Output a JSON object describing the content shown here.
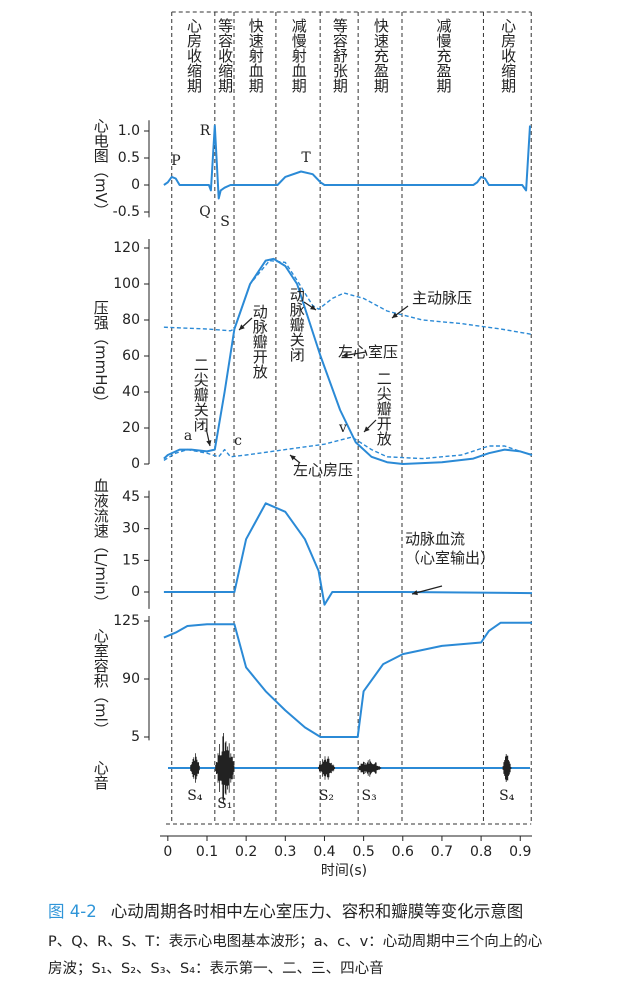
{
  "time_axis": {
    "label": "时间(s)",
    "xlim": [
      -0.02,
      0.93
    ],
    "xticks": [
      0,
      0.1,
      0.2,
      0.3,
      0.4,
      0.5,
      0.6,
      0.7,
      0.8,
      0.9
    ],
    "phases": {
      "labels": [
        "心房收缩期",
        "等容收缩期",
        "快速射血期",
        "减慢射血期",
        "等容舒张期",
        "快速充盈期",
        "减慢充盈期",
        "心房收缩期"
      ],
      "bounds": [
        0.01,
        0.12,
        0.169,
        0.276,
        0.389,
        0.486,
        0.598,
        0.806,
        0.928
      ]
    }
  },
  "chart_data": [
    {
      "type": "line",
      "y_label": "心电图（mV）",
      "ylim": [
        -0.6,
        1.2
      ],
      "yticks": [
        -0.5,
        0,
        0.5,
        {
          "value": 1,
          "label": "1.0"
        }
      ],
      "series": [
        {
          "color": "#2b8ad6",
          "dash": false,
          "x": [
            -0.01,
            0.0,
            0.01,
            0.02,
            0.03,
            0.105,
            0.11,
            0.12,
            0.13,
            0.135,
            0.145,
            0.16,
            0.28,
            0.3,
            0.34,
            0.37,
            0.39,
            0.4,
            0.78,
            0.79,
            0.8,
            0.81,
            0.82,
            0.905,
            0.915,
            0.925
          ],
          "values": [
            0,
            0.05,
            0.15,
            0.12,
            0,
            0,
            -0.1,
            1.1,
            -0.25,
            -0.1,
            -0.05,
            0,
            0,
            0.15,
            0.25,
            0.2,
            0.05,
            0,
            0,
            0.05,
            0.15,
            0.12,
            0,
            0,
            -0.1,
            1.1
          ]
        }
      ],
      "annotations": [
        "P",
        "Q",
        "R",
        "S",
        "T"
      ]
    },
    {
      "type": "line",
      "y_label": "压强（mmHg）",
      "ylim": [
        0,
        125
      ],
      "yticks": [
        0,
        20,
        40,
        60,
        80,
        100,
        120
      ],
      "series": [
        {
          "name": "左心室压",
          "color": "#2b8ad6",
          "dash": false,
          "x": [
            -0.01,
            0,
            0.03,
            0.06,
            0.1,
            0.12,
            0.145,
            0.17,
            0.21,
            0.25,
            0.27,
            0.3,
            0.33,
            0.36,
            0.39,
            0.44,
            0.48,
            0.52,
            0.56,
            0.6,
            0.7,
            0.78,
            0.82,
            0.86,
            0.9,
            0.93
          ],
          "values": [
            3,
            5,
            8,
            8,
            7,
            8,
            40,
            75,
            100,
            113,
            114,
            110,
            100,
            80,
            60,
            30,
            12,
            4,
            1,
            0,
            1,
            3,
            6,
            8,
            7,
            5
          ]
        },
        {
          "name": "主动脉压",
          "color": "#2b8ad6",
          "dash": true,
          "x": [
            -0.01,
            0.1,
            0.16,
            0.17,
            0.21,
            0.26,
            0.3,
            0.33,
            0.37,
            0.385,
            0.42,
            0.45,
            0.5,
            0.56,
            0.65,
            0.75,
            0.85,
            0.93
          ],
          "values": [
            76,
            75,
            74,
            75,
            100,
            113,
            112,
            102,
            88,
            86,
            92,
            95,
            92,
            85,
            80,
            78,
            75,
            72
          ]
        },
        {
          "name": "左心房压",
          "color": "#2b8ad6",
          "dash": true,
          "x": [
            -0.01,
            0.02,
            0.05,
            0.1,
            0.13,
            0.145,
            0.16,
            0.2,
            0.3,
            0.4,
            0.47,
            0.52,
            0.56,
            0.65,
            0.75,
            0.82,
            0.86,
            0.9,
            0.93
          ],
          "values": [
            2,
            6,
            8,
            6,
            4,
            8,
            4,
            5,
            8,
            11,
            15,
            8,
            4,
            3,
            5,
            10,
            10,
            7,
            5
          ]
        }
      ],
      "annotations": [
        "二尖瓣关闭",
        "动脉瓣开放",
        "动脉瓣关闭",
        "二尖瓣开放",
        "a",
        "c",
        "v"
      ]
    },
    {
      "type": "line",
      "y_label": "血液流速（L/min）",
      "ylim": [
        -8,
        48
      ],
      "yticks": [
        0,
        15,
        30,
        45
      ],
      "series": [
        {
          "name": "动脉血流\n（心室输出）",
          "color": "#2b8ad6",
          "dash": false,
          "x": [
            -0.01,
            0.17,
            0.2,
            0.25,
            0.3,
            0.35,
            0.385,
            0.4,
            0.42,
            0.6,
            0.93
          ],
          "values": [
            0,
            0,
            25,
            42,
            38,
            25,
            10,
            -6,
            0,
            0,
            -0.5
          ]
        }
      ]
    },
    {
      "type": "line",
      "y_label": "心室容积（ml）",
      "ylim": [
        0,
        128
      ],
      "yticks": [
        5,
        90,
        125
      ],
      "series": [
        {
          "color": "#2b8ad6",
          "dash": false,
          "x": [
            -0.01,
            0.02,
            0.05,
            0.1,
            0.17,
            0.2,
            0.25,
            0.3,
            0.35,
            0.39,
            0.485,
            0.5,
            0.55,
            0.6,
            0.7,
            0.8,
            0.82,
            0.85,
            0.93
          ],
          "values": [
            115,
            118,
            122,
            123,
            123,
            97,
            72,
            44,
            19,
            5,
            5,
            72,
            99,
            105,
            110,
            112,
            119,
            124,
            124
          ]
        }
      ]
    },
    {
      "type": "bursts",
      "y_label": "心音",
      "color": "#2b8ad6",
      "bursts": [
        {
          "label": "S₄",
          "start": 0.056,
          "end": 0.082,
          "amplitude": 0.45
        },
        {
          "label": "S₁",
          "start": 0.12,
          "end": 0.171,
          "amplitude": 1
        },
        {
          "label": "S₂",
          "start": 0.383,
          "end": 0.427,
          "amplitude": 0.35
        },
        {
          "label": "S₃",
          "start": 0.483,
          "end": 0.545,
          "amplitude": 0.25
        },
        {
          "label": "S₄",
          "start": 0.854,
          "end": 0.877,
          "amplitude": 0.45
        }
      ]
    }
  ],
  "figure_caption": {
    "label": "图 4-2",
    "title": "心动周期各时相中左心室压力、容积和瓣膜等变化示意图",
    "notes": [
      "P、Q、R、S、T：表示心电图基本波形；a、c、v：心动周期中三个向上的心",
      "房波；S₁、S₂、S₃、S₄：表示第一、二、三、四心音"
    ]
  }
}
